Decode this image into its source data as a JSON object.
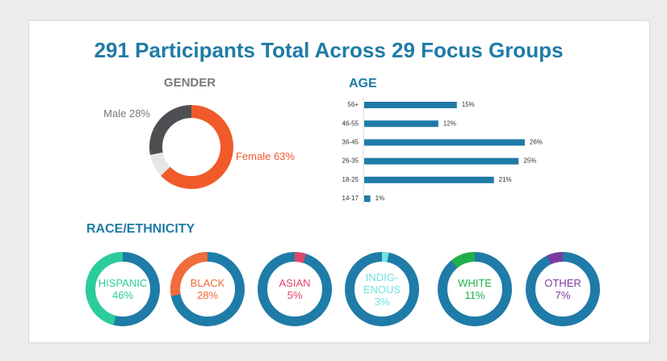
{
  "title": "291 Participants Total Across 29 Focus Groups",
  "chart_data": [
    {
      "type": "donut",
      "title": "GENDER",
      "categories": [
        "Male",
        "Female"
      ],
      "values": [
        28,
        63
      ],
      "value_labels": [
        "28%",
        "63%"
      ],
      "colors": [
        "#4d4f53",
        "#f15a2b"
      ]
    },
    {
      "type": "hbar",
      "title": "AGE",
      "categories": [
        "56+",
        "46-55",
        "36-45",
        "26-35",
        "18-25",
        "14-17"
      ],
      "values": [
        15,
        12,
        26,
        25,
        21,
        1
      ],
      "value_labels": [
        "15%",
        "12%",
        "26%",
        "25%",
        "21%",
        "1%"
      ],
      "color": "#1f7ba7"
    },
    {
      "type": "rings",
      "title": "RACE/ETHNICITY",
      "categories": [
        "HISPANIC",
        "BLACK",
        "ASIAN",
        "INDIG-ENOUS",
        "WHITE",
        "OTHER"
      ],
      "values": [
        46,
        28,
        5,
        3,
        11,
        7
      ],
      "value_labels": [
        "46%",
        "28%",
        "5%",
        "3%",
        "11%",
        "7%"
      ],
      "colors": [
        "#2bcc9c",
        "#f26b3a",
        "#e0476b",
        "#6fe3e0",
        "#22b04a",
        "#7b3aa0"
      ],
      "ring_color": "#1f7ba7"
    }
  ]
}
